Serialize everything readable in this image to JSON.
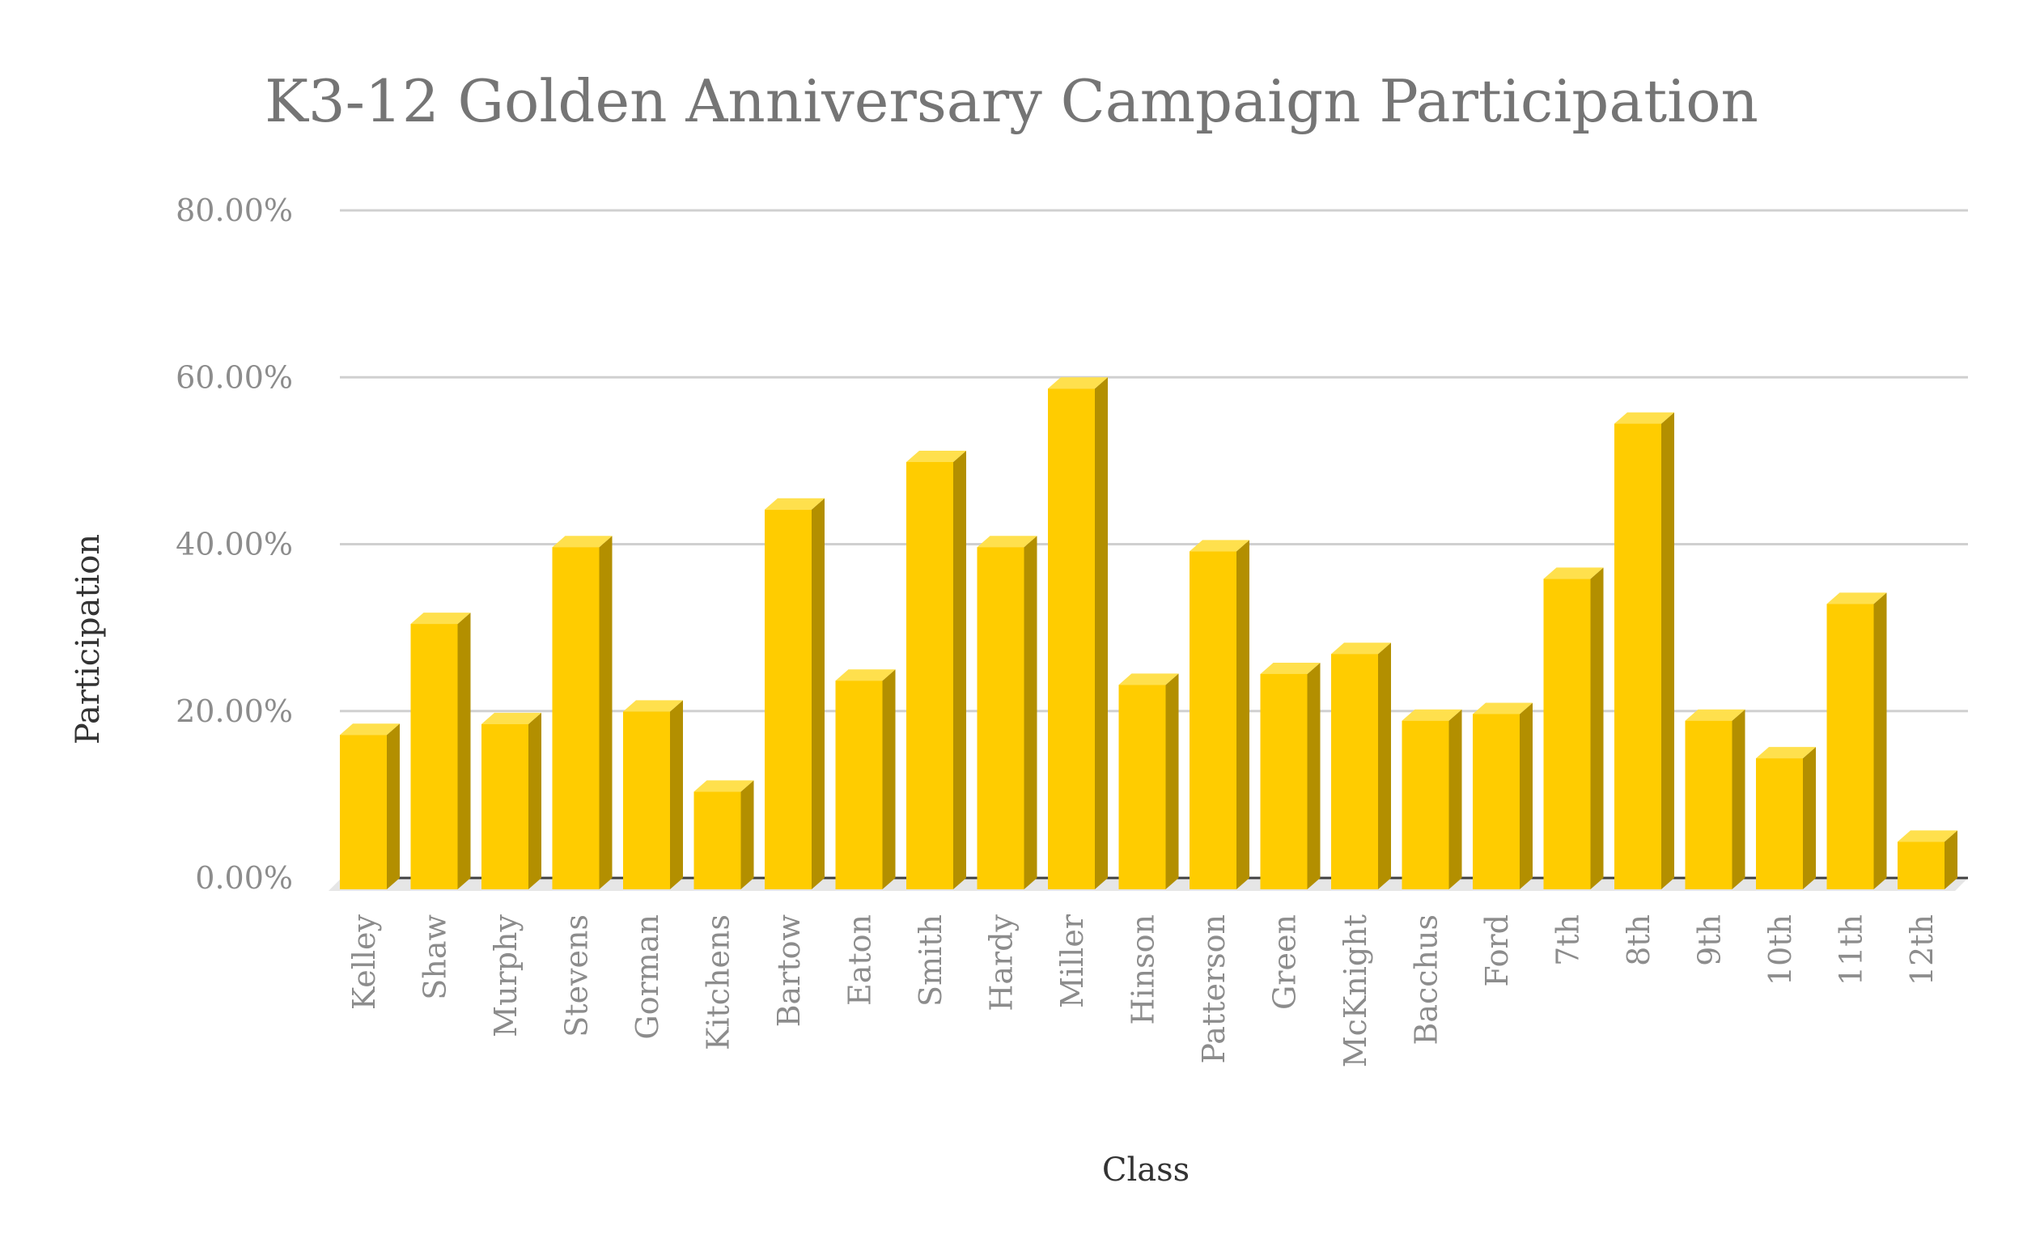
{
  "chart_data": {
    "type": "bar",
    "title": "K3-12 Golden Anniversary Campaign Participation",
    "xlabel": "Class",
    "ylabel": "Participation",
    "ylim": [
      0,
      0.8
    ],
    "yticks": [
      "0.00%",
      "20.00%",
      "40.00%",
      "60.00%",
      "80.00%"
    ],
    "grid": true,
    "bar_style": "3d-column",
    "colors": {
      "front": "#FFCC00",
      "top": "#FFE04D",
      "side": "#B38F00",
      "floor": "#E6E6E6",
      "axis": "#404040"
    },
    "categories": [
      "Kelley",
      "Shaw",
      "Murphy",
      "Stevens",
      "Gorman",
      "Kitchens",
      "Bartow",
      "Eaton",
      "Smith",
      "Hardy",
      "Miller",
      "Hinson",
      "Patterson",
      "Green",
      "McKnight",
      "Bacchus",
      "Ford",
      "7th",
      "8th",
      "9th",
      "10th",
      "11th",
      "12th"
    ],
    "values": [
      0.185,
      0.318,
      0.198,
      0.41,
      0.213,
      0.117,
      0.455,
      0.25,
      0.512,
      0.41,
      0.6,
      0.245,
      0.405,
      0.258,
      0.282,
      0.202,
      0.21,
      0.372,
      0.558,
      0.202,
      0.157,
      0.342,
      0.057
    ]
  }
}
